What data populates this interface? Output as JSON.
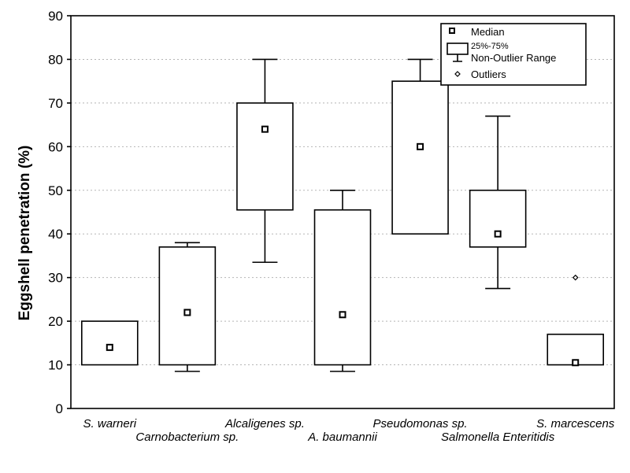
{
  "chart_data": {
    "type": "boxplot",
    "ylabel": "Eggshell penetration (%)",
    "ylim": [
      0,
      90
    ],
    "yticks": [
      0,
      10,
      20,
      30,
      40,
      50,
      60,
      70,
      80,
      90
    ],
    "grid": true,
    "legend_position": "top-right",
    "legend": {
      "median": "Median",
      "box": "25%-75%",
      "range": "Non-Outlier Range",
      "outliers": "Outliers"
    },
    "categories": [
      "S. warneri",
      "Carnobacterium sp.",
      "Alcaligenes sp.",
      "A. baumannii",
      "Pseudomonas sp.",
      "Salmonella Enteritidis",
      "S. marcescens"
    ],
    "series": [
      {
        "category": "S. warneri",
        "min": 10,
        "q1": 10,
        "median": 14,
        "q3": 20,
        "max": 20,
        "outliers": []
      },
      {
        "category": "Carnobacterium sp.",
        "min": 8.5,
        "q1": 10,
        "median": 22,
        "q3": 37,
        "max": 38,
        "outliers": []
      },
      {
        "category": "Alcaligenes sp.",
        "min": 33.5,
        "q1": 45.5,
        "median": 64,
        "q3": 70,
        "max": 80,
        "outliers": []
      },
      {
        "category": "A. baumannii",
        "min": 8.5,
        "q1": 10,
        "median": 21.5,
        "q3": 45.5,
        "max": 50,
        "outliers": []
      },
      {
        "category": "Pseudomonas sp.",
        "min": 40,
        "q1": 40,
        "median": 60,
        "q3": 75,
        "max": 80,
        "outliers": []
      },
      {
        "category": "Salmonella Enteritidis",
        "min": 27.5,
        "q1": 37,
        "median": 40,
        "q3": 50,
        "max": 67,
        "outliers": []
      },
      {
        "category": "S. marcescens",
        "min": 10,
        "q1": 10,
        "median": 10.5,
        "q3": 17,
        "max": 17,
        "outliers": [
          30
        ]
      }
    ]
  }
}
